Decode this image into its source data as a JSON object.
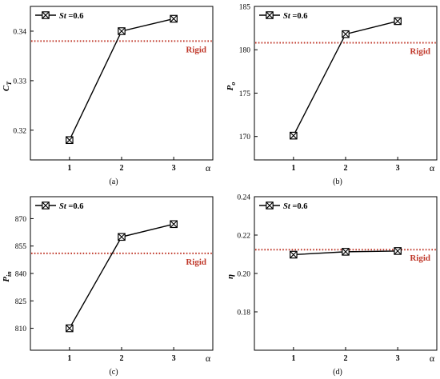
{
  "colors": {
    "series": "#000000",
    "rigid": "#c0392b",
    "axis": "#000000"
  },
  "chart_data": [
    {
      "type": "line",
      "caption": "(a)",
      "x": [
        1,
        2,
        3
      ],
      "x_ticks": [
        "1",
        "2",
        "3"
      ],
      "xlabel": "α",
      "xlim": [
        0.25,
        3.75
      ],
      "ylabel": "C",
      "ylabel_sub": "T",
      "ylim": [
        0.314,
        0.345
      ],
      "y_ticks": [
        0.32,
        0.33,
        0.34
      ],
      "y_tick_labels": [
        "0.32",
        "0.33",
        "0.34"
      ],
      "series": [
        {
          "name": "St =0.6",
          "legend_label": "St",
          "legend_suffix": " =0.6",
          "values": [
            0.318,
            0.34,
            0.3425
          ],
          "marker": "boxed-x"
        }
      ],
      "reference": {
        "label": "Rigid",
        "value": 0.338,
        "style": "dotted"
      },
      "legend_position": "top-left"
    },
    {
      "type": "line",
      "caption": "(b)",
      "x": [
        1,
        2,
        3
      ],
      "x_ticks": [
        "1",
        "2",
        "3"
      ],
      "xlabel": "α",
      "xlim": [
        0.25,
        3.75
      ],
      "ylabel": "P",
      "ylabel_sub": "o",
      "ylim": [
        167.3,
        185
      ],
      "y_ticks": [
        170,
        175,
        180,
        185
      ],
      "y_tick_labels": [
        "170",
        "175",
        "180",
        "185"
      ],
      "series": [
        {
          "name": "St =0.6",
          "legend_label": "St",
          "legend_suffix": " =0.6",
          "values": [
            170.1,
            181.8,
            183.3
          ],
          "marker": "boxed-x"
        }
      ],
      "reference": {
        "label": "Rigid",
        "value": 180.8,
        "style": "dotted"
      },
      "legend_position": "top-left"
    },
    {
      "type": "line",
      "caption": "(c)",
      "x": [
        1,
        2,
        3
      ],
      "x_ticks": [
        "1",
        "2",
        "3"
      ],
      "xlabel": "α",
      "xlim": [
        0.25,
        3.75
      ],
      "ylabel": "P",
      "ylabel_sub": "in",
      "ylim": [
        798,
        882
      ],
      "y_ticks": [
        810,
        825,
        840,
        855,
        870
      ],
      "y_tick_labels": [
        "810",
        "825",
        "840",
        "855",
        "870"
      ],
      "series": [
        {
          "name": "St =0.6",
          "legend_label": "St",
          "legend_suffix": " =0.6",
          "values": [
            810,
            860,
            867
          ],
          "marker": "boxed-x"
        }
      ],
      "reference": {
        "label": "Rigid",
        "value": 851,
        "style": "dotted"
      },
      "legend_position": "top-left"
    },
    {
      "type": "line",
      "caption": "(d)",
      "x": [
        1,
        2,
        3
      ],
      "x_ticks": [
        "1",
        "2",
        "3"
      ],
      "xlabel": "α",
      "xlim": [
        0.25,
        3.75
      ],
      "ylabel": "η",
      "ylabel_sub": "",
      "ylim": [
        0.16,
        0.24
      ],
      "y_ticks": [
        0.18,
        0.2,
        0.22,
        0.24
      ],
      "y_tick_labels": [
        "0.18",
        "0.20",
        "0.22",
        "0.24"
      ],
      "series": [
        {
          "name": "St =0.6",
          "legend_label": "St",
          "legend_suffix": " =0.6",
          "values": [
            0.2098,
            0.2113,
            0.2117
          ],
          "marker": "boxed-x"
        }
      ],
      "reference": {
        "label": "Rigid",
        "value": 0.2124,
        "style": "dotted"
      },
      "legend_position": "top-left"
    }
  ]
}
